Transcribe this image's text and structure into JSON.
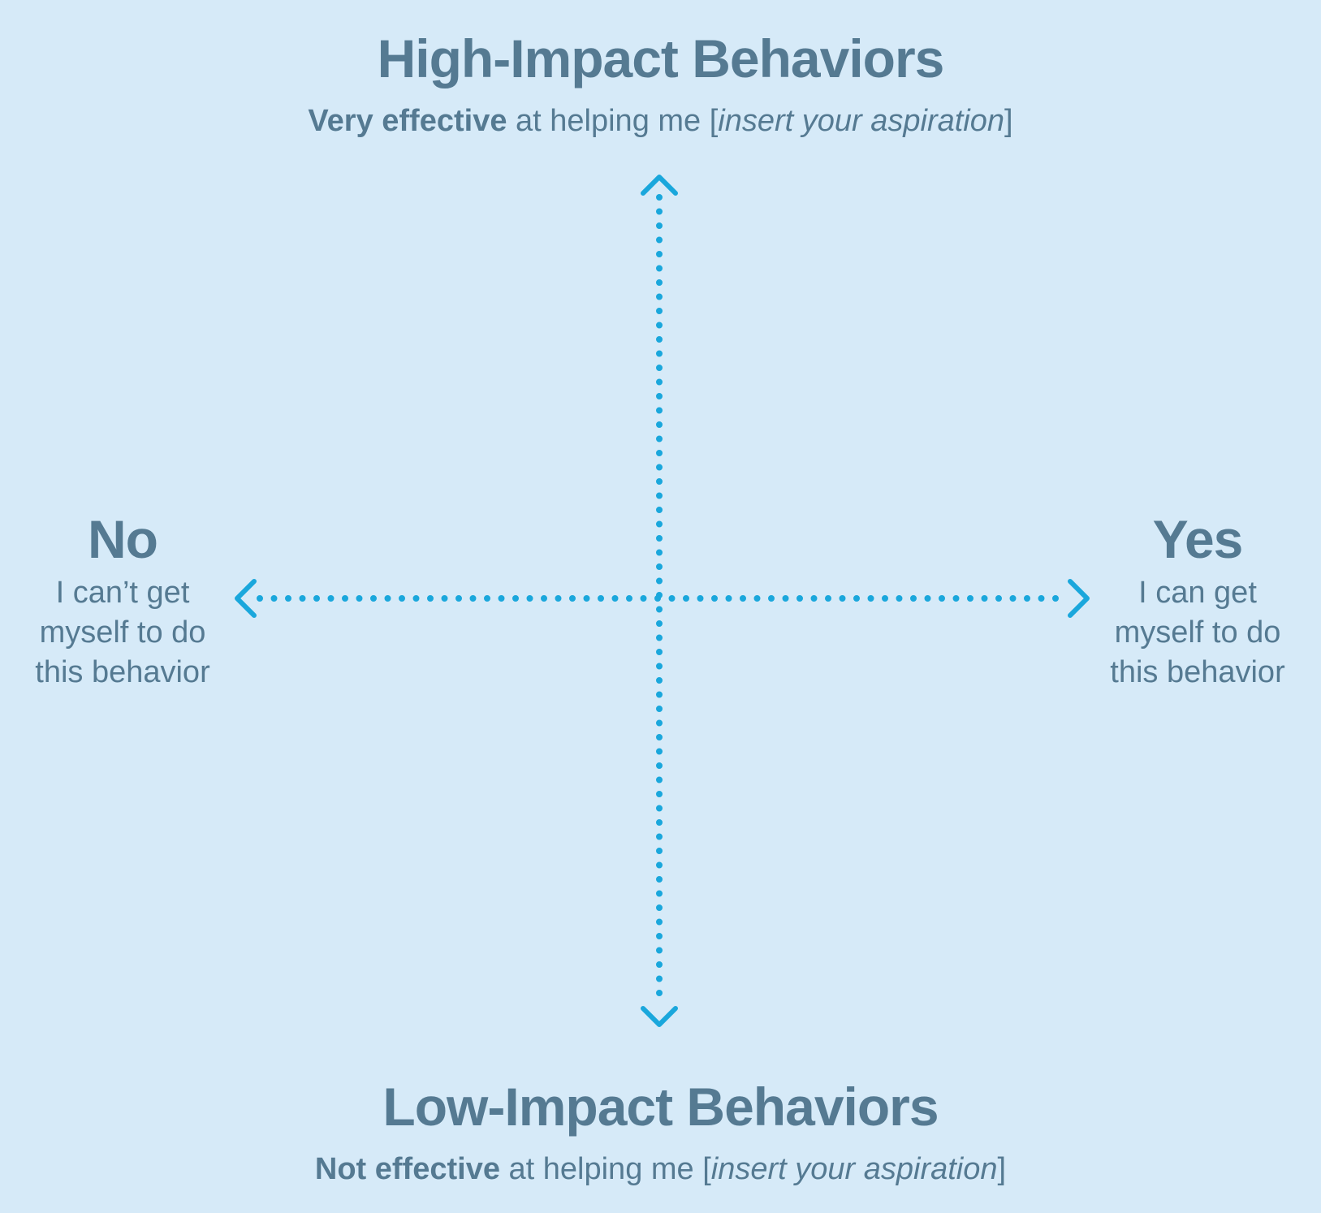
{
  "top": {
    "title": "High-Impact Behaviors",
    "subtitle_bold": "Very effective",
    "subtitle_mid": " at helping me [",
    "subtitle_italic": "insert your aspiration",
    "subtitle_end": "]"
  },
  "bottom": {
    "title": "Low-Impact Behaviors",
    "subtitle_bold": "Not effective",
    "subtitle_mid": " at helping me [",
    "subtitle_italic": "insert your aspiration",
    "subtitle_end": "]"
  },
  "left": {
    "heading": "No",
    "line1": "I can’t get",
    "line2": "myself to do",
    "line3": "this behavior"
  },
  "right": {
    "heading": "Yes",
    "line1": "I can get",
    "line2": "myself to do",
    "line3": "this behavior"
  },
  "colors": {
    "background": "#d6eaf8",
    "text": "#557a92",
    "axis": "#1aa7dc"
  }
}
